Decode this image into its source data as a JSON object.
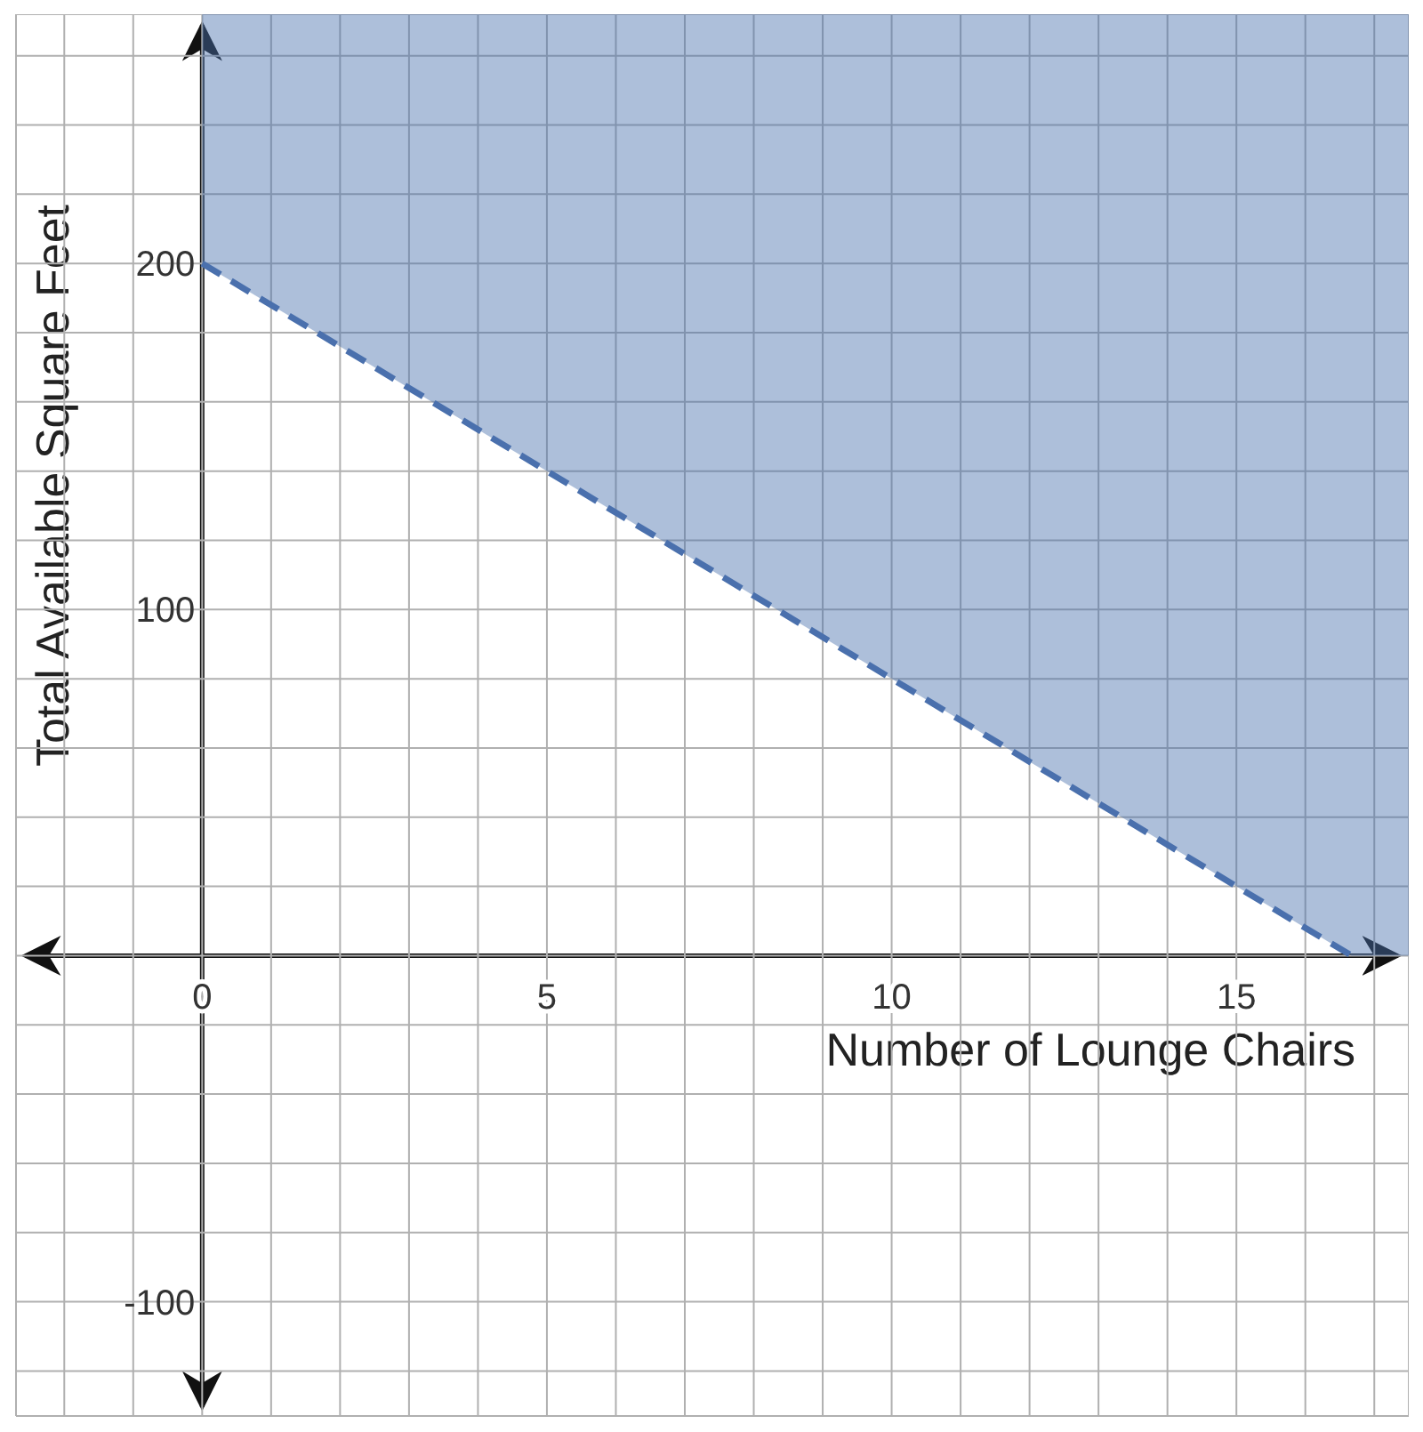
{
  "chart_data": {
    "type": "line",
    "xlabel": "Number of Lounge Chairs",
    "ylabel": "Total Available Square Feet",
    "xlim": [
      -2.7,
      17.5
    ],
    "ylim": [
      -133,
      272
    ],
    "xticks": [
      {
        "value": -2,
        "label": null
      },
      {
        "value": -1,
        "label": null
      },
      0,
      {
        "value": 1,
        "label": null
      },
      {
        "value": 2,
        "label": null
      },
      {
        "value": 3,
        "label": null
      },
      {
        "value": 4,
        "label": null
      },
      5,
      {
        "value": 6,
        "label": null
      },
      {
        "value": 7,
        "label": null
      },
      {
        "value": 8,
        "label": null
      },
      {
        "value": 9,
        "label": null
      },
      10,
      {
        "value": 11,
        "label": null
      },
      {
        "value": 12,
        "label": null
      },
      {
        "value": 13,
        "label": null
      },
      {
        "value": 14,
        "label": null
      },
      15,
      {
        "value": 16,
        "label": null
      },
      {
        "value": 17,
        "label": null
      }
    ],
    "yticks": [
      {
        "value": -120,
        "label": null
      },
      -100,
      {
        "value": -80,
        "label": null
      },
      {
        "value": -60,
        "label": null
      },
      {
        "value": -40,
        "label": null
      },
      {
        "value": -20,
        "label": null
      },
      {
        "value": 0,
        "label": null
      },
      {
        "value": 20,
        "label": null
      },
      {
        "value": 40,
        "label": null
      },
      {
        "value": 60,
        "label": null
      },
      {
        "value": 80,
        "label": null
      },
      100,
      {
        "value": 120,
        "label": null
      },
      {
        "value": 140,
        "label": null
      },
      {
        "value": 160,
        "label": null
      },
      {
        "value": 180,
        "label": null
      },
      200,
      {
        "value": 220,
        "label": null
      },
      {
        "value": 240,
        "label": null
      },
      {
        "value": 260,
        "label": null
      }
    ],
    "grid": true,
    "line_style": "dashed",
    "marker": "none",
    "series": [
      {
        "color": "#4a70ad",
        "x": [
          0,
          16.67,
          17.5
        ],
        "values": [
          200,
          0,
          null
        ],
        "lower": [
          200,
          0,
          0
        ],
        "upper": [
          272,
          272,
          272
        ]
      }
    ]
  }
}
